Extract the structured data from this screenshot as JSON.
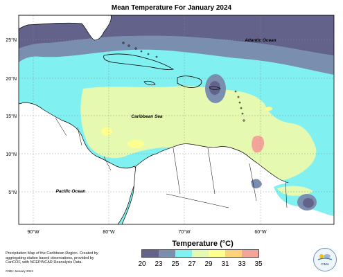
{
  "title": "Mean Temperature For January 2024",
  "colors": {
    "c20_23": "#62628a",
    "c23_25": "#7a8fb0",
    "c25_27": "#80f0f0",
    "c27_29": "#e5f9b0",
    "c29_31": "#ffff90",
    "c31_33": "#ffd27a",
    "c33_35": "#f4a59a",
    "land": "#ffffff",
    "border": "#000000"
  },
  "map_labels": {
    "atlantic": "Atlantic Ocean",
    "caribbean": "Caribbean Sea",
    "pacific": "Pacific Ocean"
  },
  "lat_labels": [
    "25°N",
    "20°N",
    "15°N",
    "10°N",
    "5°N"
  ],
  "lon_labels": [
    "90°W",
    "80°W",
    "70°W",
    "60°W"
  ],
  "legend": {
    "title": "Temperature (°C)",
    "ticks": [
      "20",
      "23",
      "25",
      "27",
      "29",
      "31",
      "33",
      "35"
    ]
  },
  "caption": "Precipitation Map of the Caribbean Region. Created by aggregating station based observations, provided by CariCOF, with NCEP/NCAR Reanalysis Data.",
  "credit": "CIMH January 2024",
  "logo_text": "CIMH"
}
